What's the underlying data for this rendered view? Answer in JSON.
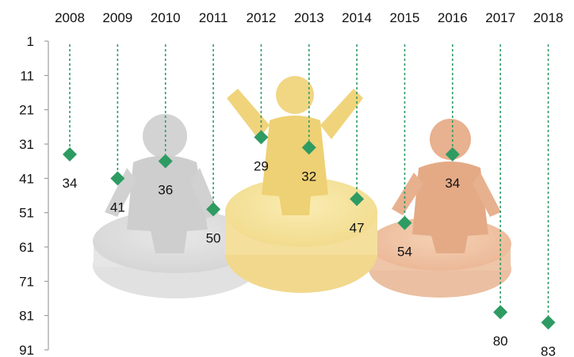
{
  "chart_data": {
    "type": "scatter",
    "title": "",
    "xlabel": "",
    "ylabel": "",
    "x_axis_position": "top",
    "y_axis_inverted": true,
    "categories": [
      "2008",
      "2009",
      "2010",
      "2011",
      "2012",
      "2013",
      "2014",
      "2015",
      "2016",
      "2017",
      "2018"
    ],
    "values": [
      34,
      41,
      36,
      50,
      29,
      32,
      47,
      54,
      34,
      80,
      83
    ],
    "ylim": [
      1,
      91
    ],
    "yticks": [
      1,
      11,
      21,
      31,
      41,
      51,
      61,
      71,
      81,
      91
    ],
    "marker": "diamond",
    "marker_color": "#2e9b63",
    "drop_line_color": "#2e9b63",
    "drop_line_style": "dashed",
    "background": "faded podium illustration with grey, yellow and orange figures",
    "grid": false,
    "legend": "none"
  }
}
